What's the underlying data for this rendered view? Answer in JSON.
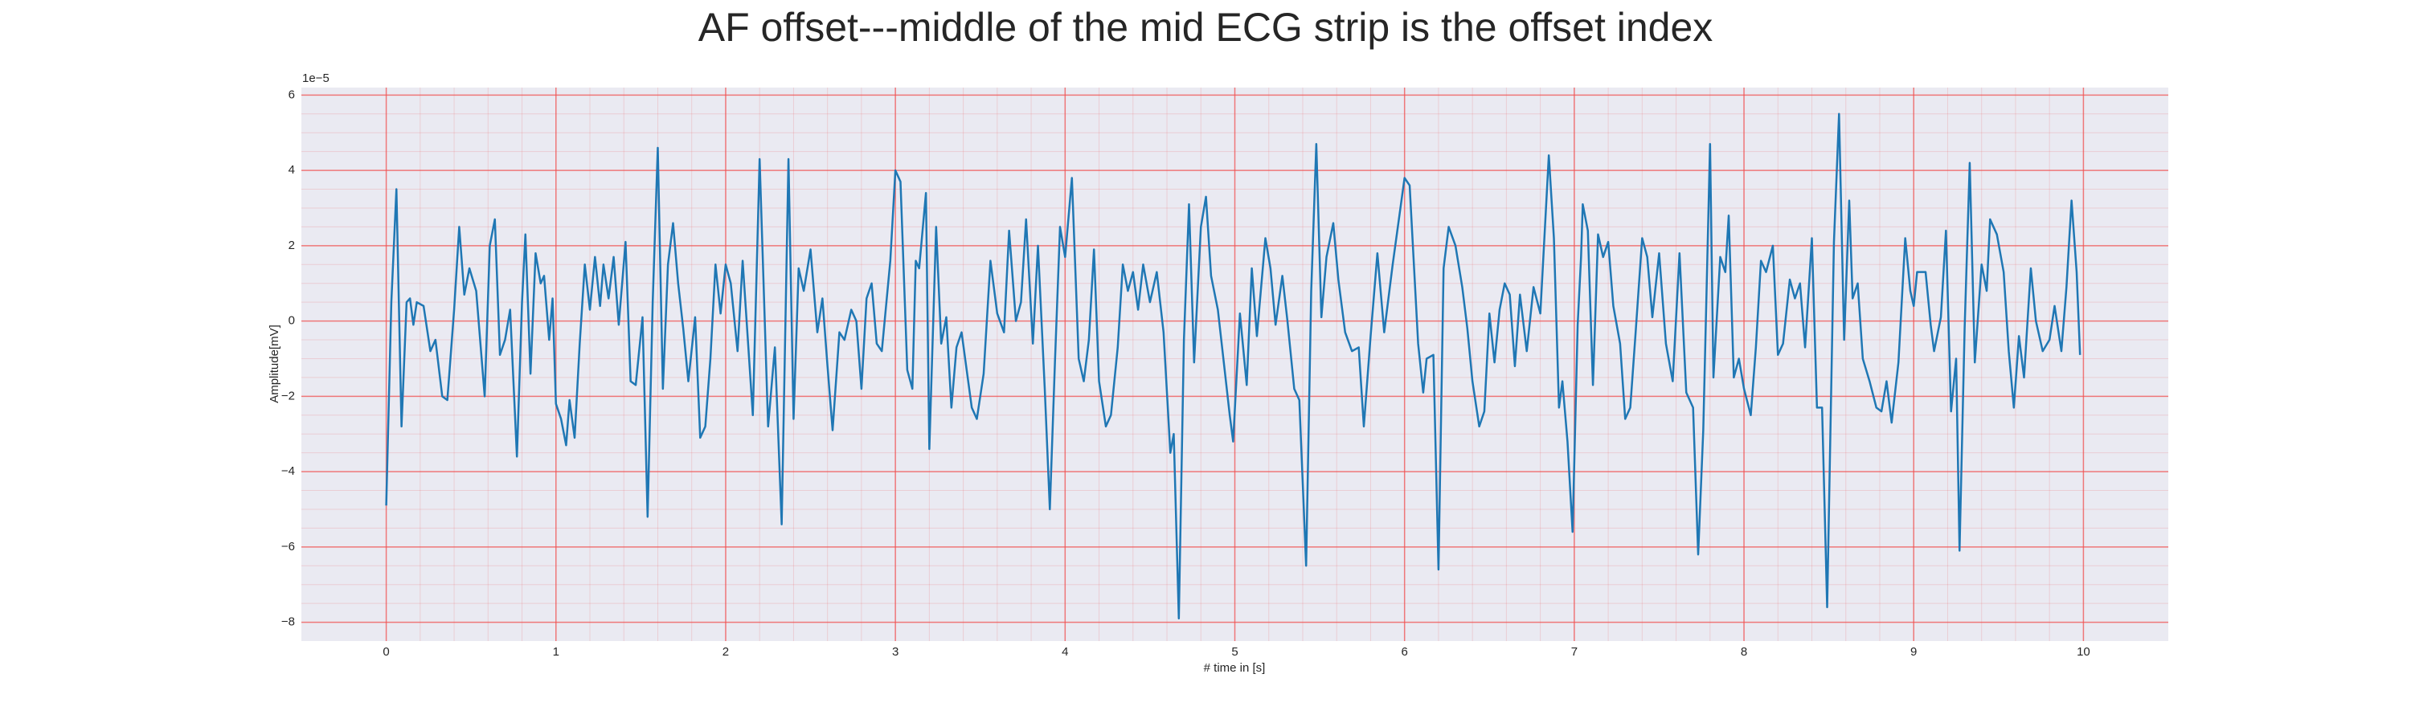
{
  "chart_data": {
    "type": "line",
    "title": "AF offset---middle of the mid ECG strip is the offset index",
    "x_label": "# time in [s]",
    "y_label": "Amplitude[mV]",
    "y_offset_label": "1e−5",
    "xlim": [
      -0.5,
      10.5
    ],
    "ylim": [
      -8.5,
      6.2
    ],
    "xticks": [
      0,
      1,
      2,
      3,
      4,
      5,
      6,
      7,
      8,
      9,
      10
    ],
    "yticks": [
      {
        "value": -8,
        "label": "−8"
      },
      {
        "value": -6,
        "label": "−6"
      },
      {
        "value": -4,
        "label": "−4"
      },
      {
        "value": -2,
        "label": "−2"
      },
      0,
      2,
      4,
      6
    ],
    "grid": true,
    "minor_grid": true,
    "background": "#eaeaf2",
    "grid_color": "#f05050",
    "x": [
      0.0,
      0.03,
      0.06,
      0.09,
      0.12,
      0.14,
      0.16,
      0.18,
      0.22,
      0.26,
      0.29,
      0.33,
      0.36,
      0.4,
      0.43,
      0.46,
      0.49,
      0.53,
      0.58,
      0.61,
      0.64,
      0.67,
      0.7,
      0.73,
      0.77,
      0.8,
      0.82,
      0.85,
      0.88,
      0.91,
      0.93,
      0.96,
      0.98,
      1.0,
      1.03,
      1.06,
      1.08,
      1.11,
      1.14,
      1.17,
      1.2,
      1.23,
      1.26,
      1.28,
      1.31,
      1.34,
      1.37,
      1.41,
      1.44,
      1.47,
      1.51,
      1.54,
      1.57,
      1.6,
      1.63,
      1.66,
      1.69,
      1.72,
      1.75,
      1.78,
      1.82,
      1.85,
      1.88,
      1.91,
      1.94,
      1.97,
      2.0,
      2.03,
      2.07,
      2.1,
      2.16,
      2.2,
      2.25,
      2.29,
      2.33,
      2.37,
      2.4,
      2.43,
      2.46,
      2.5,
      2.54,
      2.57,
      2.6,
      2.63,
      2.67,
      2.7,
      2.74,
      2.77,
      2.8,
      2.83,
      2.86,
      2.89,
      2.92,
      2.97,
      3.0,
      3.03,
      3.07,
      3.1,
      3.12,
      3.14,
      3.18,
      3.2,
      3.24,
      3.27,
      3.3,
      3.33,
      3.36,
      3.39,
      3.42,
      3.45,
      3.48,
      3.52,
      3.56,
      3.6,
      3.64,
      3.67,
      3.71,
      3.74,
      3.77,
      3.81,
      3.84,
      3.88,
      3.91,
      3.94,
      3.97,
      4.0,
      4.04,
      4.08,
      4.11,
      4.14,
      4.17,
      4.2,
      4.24,
      4.27,
      4.31,
      4.34,
      4.37,
      4.4,
      4.43,
      4.46,
      4.5,
      4.54,
      4.58,
      4.62,
      4.64,
      4.67,
      4.7,
      4.73,
      4.76,
      4.8,
      4.83,
      4.86,
      4.9,
      4.94,
      4.97,
      4.99,
      5.03,
      5.07,
      5.1,
      5.13,
      5.18,
      5.21,
      5.24,
      5.28,
      5.31,
      5.35,
      5.38,
      5.42,
      5.45,
      5.48,
      5.51,
      5.54,
      5.58,
      5.61,
      5.65,
      5.69,
      5.73,
      5.76,
      5.8,
      5.84,
      5.88,
      5.93,
      6.0,
      6.03,
      6.08,
      6.11,
      6.13,
      6.17,
      6.2,
      6.23,
      6.26,
      6.3,
      6.34,
      6.37,
      6.4,
      6.44,
      6.47,
      6.5,
      6.53,
      6.56,
      6.59,
      6.62,
      6.65,
      6.68,
      6.72,
      6.76,
      6.8,
      6.85,
      6.88,
      6.91,
      6.93,
      6.96,
      6.99,
      7.02,
      7.04,
      7.05,
      7.08,
      7.11,
      7.14,
      7.17,
      7.2,
      7.23,
      7.27,
      7.3,
      7.33,
      7.36,
      7.4,
      7.43,
      7.46,
      7.5,
      7.54,
      7.58,
      7.62,
      7.66,
      7.7,
      7.73,
      7.76,
      7.8,
      7.82,
      7.86,
      7.89,
      7.91,
      7.94,
      7.97,
      8.0,
      8.04,
      8.07,
      8.1,
      8.13,
      8.17,
      8.2,
      8.23,
      8.27,
      8.3,
      8.33,
      8.36,
      8.4,
      8.43,
      8.46,
      8.49,
      8.53,
      8.56,
      8.59,
      8.62,
      8.64,
      8.67,
      8.7,
      8.74,
      8.78,
      8.81,
      8.84,
      8.87,
      8.91,
      8.95,
      8.98,
      9.0,
      9.02,
      9.07,
      9.1,
      9.12,
      9.16,
      9.19,
      9.22,
      9.25,
      9.27,
      9.3,
      9.33,
      9.36,
      9.4,
      9.43,
      9.45,
      9.49,
      9.53,
      9.56,
      9.59,
      9.62,
      9.65,
      9.69,
      9.72,
      9.76,
      9.8,
      9.83,
      9.87,
      9.9,
      9.93,
      9.96,
      9.98
    ],
    "series": [
      {
        "color": "#1f77b4",
        "values": [
          -4.9,
          0.5,
          3.5,
          -2.8,
          0.5,
          0.6,
          -0.1,
          0.5,
          0.4,
          -0.8,
          -0.5,
          -2.0,
          -2.1,
          0.3,
          2.5,
          0.7,
          1.4,
          0.8,
          -2.0,
          2.0,
          2.7,
          -0.9,
          -0.5,
          0.3,
          -3.6,
          0.5,
          2.3,
          -1.4,
          1.8,
          1.0,
          1.2,
          -0.5,
          0.6,
          -2.2,
          -2.6,
          -3.3,
          -2.1,
          -3.1,
          -0.6,
          1.5,
          0.3,
          1.7,
          0.4,
          1.5,
          0.6,
          1.7,
          -0.1,
          2.1,
          -1.6,
          -1.7,
          0.1,
          -5.2,
          0.5,
          4.6,
          -1.8,
          1.5,
          2.6,
          1.0,
          -0.2,
          -1.6,
          0.1,
          -3.1,
          -2.8,
          -1.0,
          1.5,
          0.2,
          1.5,
          1.0,
          -0.8,
          1.6,
          -2.5,
          4.3,
          -2.8,
          -0.7,
          -5.4,
          4.3,
          -2.6,
          1.4,
          0.8,
          1.9,
          -0.3,
          0.6,
          -1.2,
          -2.9,
          -0.3,
          -0.5,
          0.3,
          0.0,
          -1.8,
          0.6,
          1.0,
          -0.6,
          -0.8,
          1.6,
          4.0,
          3.7,
          -1.3,
          -1.8,
          1.6,
          1.4,
          3.4,
          -3.4,
          2.5,
          -0.6,
          0.1,
          -2.3,
          -0.7,
          -0.3,
          -1.3,
          -2.3,
          -2.6,
          -1.4,
          1.6,
          0.2,
          -0.3,
          2.4,
          0.0,
          0.5,
          2.7,
          -0.6,
          2.0,
          -1.8,
          -5.0,
          -1.1,
          2.5,
          1.7,
          3.8,
          -1.0,
          -1.6,
          -0.5,
          1.9,
          -1.6,
          -2.8,
          -2.5,
          -0.7,
          1.5,
          0.8,
          1.3,
          0.3,
          1.5,
          0.5,
          1.3,
          -0.3,
          -3.5,
          -3.0,
          -7.9,
          -0.5,
          3.1,
          -1.1,
          2.5,
          3.3,
          1.2,
          0.3,
          -1.3,
          -2.5,
          -3.2,
          0.2,
          -1.7,
          1.4,
          -0.4,
          2.2,
          1.4,
          -0.1,
          1.2,
          0.0,
          -1.8,
          -2.1,
          -6.5,
          0.8,
          4.7,
          0.1,
          1.7,
          2.6,
          1.1,
          -0.3,
          -0.8,
          -0.7,
          -2.8,
          -0.4,
          1.8,
          -0.3,
          1.5,
          3.8,
          3.6,
          -0.6,
          -1.9,
          -1.0,
          -0.9,
          -6.6,
          1.4,
          2.5,
          2.0,
          0.9,
          -0.2,
          -1.6,
          -2.8,
          -2.4,
          0.2,
          -1.1,
          0.3,
          1.0,
          0.7,
          -1.2,
          0.7,
          -0.8,
          0.9,
          0.2,
          4.4,
          2.2,
          -2.3,
          -1.6,
          -3.2,
          -5.6,
          -0.1,
          1.7,
          3.1,
          2.4,
          -1.7,
          2.3,
          1.7,
          2.1,
          0.4,
          -0.6,
          -2.6,
          -2.3,
          -0.4,
          2.2,
          1.7,
          0.1,
          1.8,
          -0.6,
          -1.6,
          1.8,
          -1.9,
          -2.3,
          -6.2,
          -2.9,
          4.7,
          -1.5,
          1.7,
          1.3,
          2.8,
          -1.5,
          -1.0,
          -1.8,
          -2.5,
          -0.7,
          1.6,
          1.3,
          2.0,
          -0.9,
          -0.6,
          1.1,
          0.6,
          1.0,
          -0.7,
          2.2,
          -2.3,
          -2.3,
          -7.6,
          2.1,
          5.5,
          -0.5,
          3.2,
          0.6,
          1.0,
          -1.0,
          -1.6,
          -2.3,
          -2.4,
          -1.6,
          -2.7,
          -1.1,
          2.2,
          0.8,
          0.4,
          1.3,
          1.3,
          -0.1,
          -0.8,
          0.1,
          2.4,
          -2.4,
          -1.0,
          -6.1,
          -0.2,
          4.2,
          -1.1,
          1.5,
          0.8,
          2.7,
          2.3,
          1.3,
          -0.8,
          -2.3,
          -0.4,
          -1.5,
          1.4,
          0.0,
          -0.8,
          -0.5,
          0.4,
          -0.8,
          0.9,
          3.2,
          1.3,
          -0.9
        ]
      }
    ]
  }
}
